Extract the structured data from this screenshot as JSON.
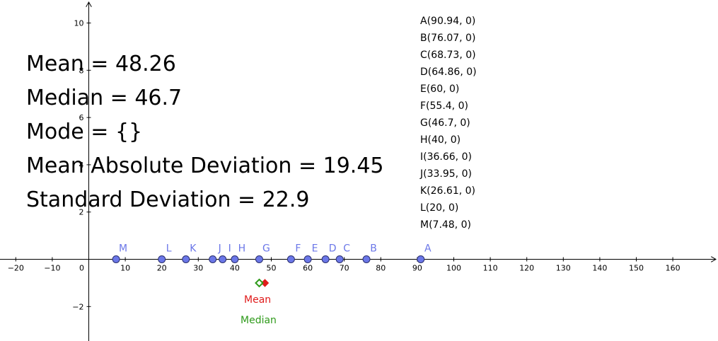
{
  "stats": {
    "mean": "Mean = 48.26",
    "median": "Median = 46.7",
    "mode": "Mode = {}",
    "mad": "Mean Absolute Deviation = 19.45",
    "sd": "Standard Deviation = 22.9"
  },
  "coordinates": [
    "A(90.94, 0)",
    "B(76.07, 0)",
    "C(68.73, 0)",
    "D(64.86, 0)",
    "E(60, 0)",
    "F(55.4, 0)",
    "G(46.7, 0)",
    "H(40, 0)",
    "I(36.66, 0)",
    "J(33.95, 0)",
    "K(26.61, 0)",
    "L(20, 0)",
    "M(7.48, 0)"
  ],
  "markers": {
    "mean_label": "Mean",
    "median_label": "Median",
    "mean_value": 48.26,
    "median_value": 46.7,
    "mean_color": "#e01b1b",
    "median_color": "#2e9a1a"
  },
  "point_color": "#6b77e8",
  "chart_data": {
    "type": "scatter",
    "points": [
      {
        "label": "A",
        "x": 90.94,
        "y": 0
      },
      {
        "label": "B",
        "x": 76.07,
        "y": 0
      },
      {
        "label": "C",
        "x": 68.73,
        "y": 0
      },
      {
        "label": "D",
        "x": 64.86,
        "y": 0
      },
      {
        "label": "E",
        "x": 60,
        "y": 0
      },
      {
        "label": "F",
        "x": 55.4,
        "y": 0
      },
      {
        "label": "G",
        "x": 46.7,
        "y": 0
      },
      {
        "label": "H",
        "x": 40,
        "y": 0
      },
      {
        "label": "I",
        "x": 36.66,
        "y": 0
      },
      {
        "label": "J",
        "x": 33.95,
        "y": 0
      },
      {
        "label": "K",
        "x": 26.61,
        "y": 0
      },
      {
        "label": "L",
        "x": 20,
        "y": 0
      },
      {
        "label": "M",
        "x": 7.48,
        "y": 0
      }
    ],
    "x_ticks": [
      -20,
      -10,
      0,
      10,
      20,
      30,
      40,
      50,
      60,
      70,
      80,
      90,
      100,
      110,
      120,
      130,
      140,
      150,
      160
    ],
    "y_ticks": [
      -2,
      2,
      4,
      6,
      8,
      10
    ]
  }
}
